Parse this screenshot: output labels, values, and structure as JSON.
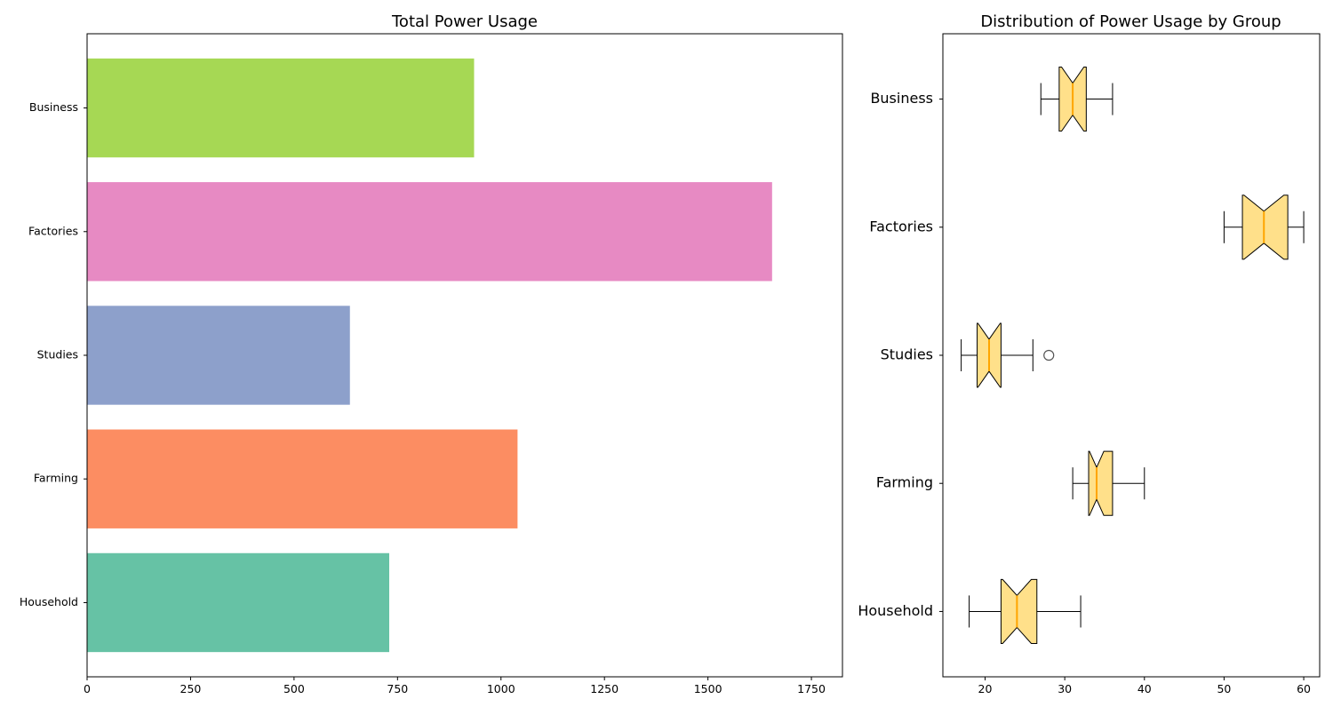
{
  "chart_data": [
    {
      "type": "bar",
      "orientation": "horizontal",
      "title": "Total Power Usage",
      "xlabel": "",
      "ylabel": "",
      "categories": [
        "Household",
        "Farming",
        "Studies",
        "Factories",
        "Business"
      ],
      "values": [
        730,
        1040,
        635,
        1655,
        935
      ],
      "colors": [
        "#66c2a5",
        "#fc8d62",
        "#8da0cb",
        "#e78ac3",
        "#a6d854"
      ],
      "xlim": [
        0,
        1825
      ],
      "xticks": [
        0,
        250,
        500,
        750,
        1000,
        1250,
        1500,
        1750
      ],
      "grid": false
    },
    {
      "type": "boxplot",
      "orientation": "horizontal",
      "notched": true,
      "title": "Distribution of Power Usage by Group",
      "xlabel": "",
      "ylabel": "",
      "categories": [
        "Household",
        "Farming",
        "Studies",
        "Factories",
        "Business"
      ],
      "box_color": "#ffe08a",
      "median_color": "#ffa500",
      "boxes": [
        {
          "whislo": 18,
          "q1": 22,
          "med": 24,
          "q3": 26.5,
          "whishi": 32,
          "notch_lo": 22.2,
          "notch_hi": 25.8,
          "fliers": []
        },
        {
          "whislo": 31,
          "q1": 33,
          "med": 34,
          "q3": 36,
          "whishi": 40,
          "notch_lo": 33.1,
          "notch_hi": 34.9,
          "fliers": []
        },
        {
          "whislo": 17,
          "q1": 19,
          "med": 20.5,
          "q3": 22,
          "whishi": 26,
          "notch_lo": 19.1,
          "notch_hi": 21.9,
          "fliers": [
            28
          ]
        },
        {
          "whislo": 50,
          "q1": 52.3,
          "med": 55,
          "q3": 58,
          "whishi": 60,
          "notch_lo": 52.5,
          "notch_hi": 57.5,
          "fliers": []
        },
        {
          "whislo": 27,
          "q1": 29.3,
          "med": 31,
          "q3": 32.7,
          "whishi": 36,
          "notch_lo": 29.6,
          "notch_hi": 32.4,
          "fliers": []
        }
      ],
      "xlim": [
        14.7,
        62
      ],
      "xticks": [
        20,
        30,
        40,
        50,
        60
      ],
      "grid": false
    }
  ]
}
